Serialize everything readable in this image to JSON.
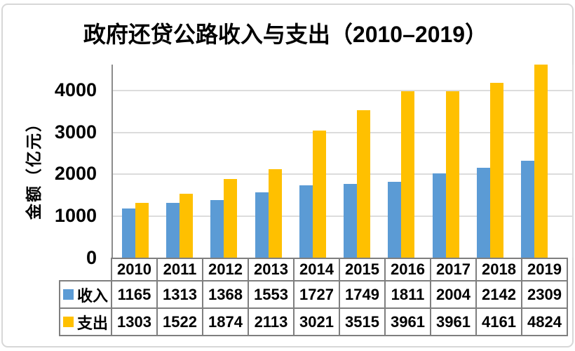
{
  "chart_data": {
    "type": "bar",
    "title": "政府还贷公路收入与支出（2010–2019）",
    "ylabel": "金额（亿元）",
    "xlabel": "",
    "categories": [
      "2010",
      "2011",
      "2012",
      "2013",
      "2014",
      "2015",
      "2016",
      "2017",
      "2018",
      "2019"
    ],
    "series": [
      {
        "name": "收入",
        "color": "#5B9BD5",
        "values": [
          1165,
          1313,
          1368,
          1553,
          1727,
          1749,
          1811,
          2004,
          2142,
          2309
        ]
      },
      {
        "name": "支出",
        "color": "#FFC000",
        "values": [
          1303,
          1522,
          1874,
          2113,
          3021,
          3515,
          3961,
          3961,
          4161,
          4824
        ]
      }
    ],
    "yticks": [
      0,
      1000,
      2000,
      3000,
      4000
    ],
    "ylim": [
      0,
      4600
    ],
    "grid": true,
    "legend_position": "table-left",
    "data_table_shown": true
  },
  "colors": {
    "income": "#5B9BD5",
    "expense": "#FFC000",
    "gridline": "#DCDCDC",
    "axis_line": "#8C8C8C",
    "table_border": "#7F7F7F",
    "card_border": "#D7D7D7",
    "text": "#000000"
  }
}
